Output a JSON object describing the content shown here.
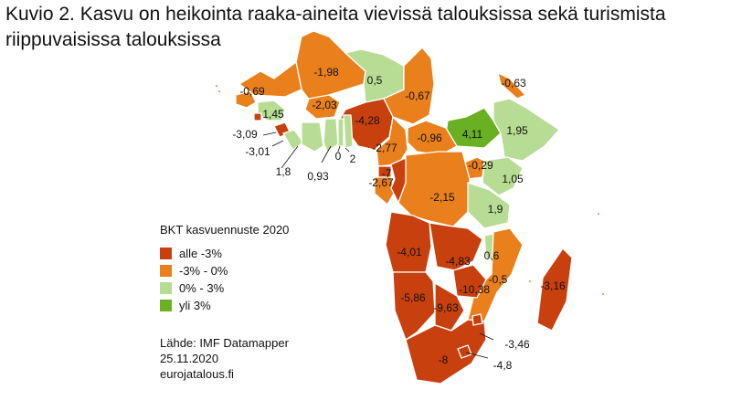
{
  "title": "Kuvio 2. Kasvu on heikointa raaka-aineita vievissä talouksissa sekä turismista riippuvaisissa talouksissa",
  "colors": {
    "below_minus3": "#c9400f",
    "minus3_to_0": "#e9801c",
    "zero_to_3": "#b7dc94",
    "above3": "#6ab023",
    "border": "#ffffff"
  },
  "legend": {
    "title": "BKT kasvuennuste 2020",
    "items": [
      {
        "label": "alle -3%",
        "color": "#c9400f"
      },
      {
        "label": "-3% - 0%",
        "color": "#e9801c"
      },
      {
        "label": "0% - 3%",
        "color": "#b7dc94"
      },
      {
        "label": "yli 3%",
        "color": "#6ab023"
      }
    ]
  },
  "source": {
    "line1": "Lähde: IMF Datamapper",
    "line2": "25.11.2020",
    "line3": "eurojatalous.fi"
  },
  "map_data": {
    "labels": [
      "-1,98",
      "0,5",
      "-0,69",
      "-0,67",
      "-0,63",
      "-2,03",
      "1,45",
      "-4,28",
      "4,11",
      "1,95",
      "-3,09",
      "-0,96",
      "-3,01",
      "-2,77",
      "-0,29",
      "1,8",
      "0",
      "2",
      "0,93",
      "-7",
      "-2,67",
      "-2,15",
      "1,05",
      "1,9",
      "0,6",
      "-4,01",
      "-4,83",
      "-0,5",
      "-3,16",
      "-10,38",
      "-5,86",
      "-9,63",
      "-3,46",
      "-8",
      "-4,8"
    ]
  }
}
